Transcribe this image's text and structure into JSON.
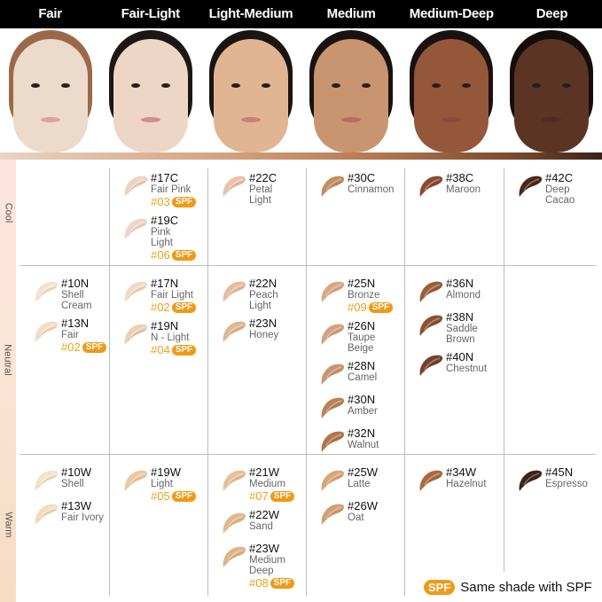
{
  "columns": [
    {
      "label": "Fair",
      "skin": "#ecdacb",
      "hair": "#9a6a48",
      "lip": "#d9a3a0"
    },
    {
      "label": "Fair-Light",
      "skin": "#edd6c6",
      "hair": "#1c1614",
      "lip": "#cf8f8a"
    },
    {
      "label": "Light-Medium",
      "skin": "#e2b592",
      "hair": "#1a1412",
      "lip": "#c98274"
    },
    {
      "label": "Medium",
      "skin": "#c99570",
      "hair": "#1a1210",
      "lip": "#b2705e"
    },
    {
      "label": "Medium-Deep",
      "skin": "#94573a",
      "hair": "#1a1110",
      "lip": "#8a4a3b"
    },
    {
      "label": "Deep",
      "skin": "#5c3424",
      "hair": "#150d0b",
      "lip": "#4e2a22"
    }
  ],
  "rows": [
    {
      "label": "Cool",
      "cells": [
        [],
        [
          {
            "code": "#17C",
            "name": "Fair Pink",
            "spf": "#03",
            "color": "#efd1c2"
          },
          {
            "code": "#19C",
            "name": "Pink Light",
            "spf": "#06",
            "color": "#f0d5c8"
          }
        ],
        [
          {
            "code": "#22C",
            "name": "Petal Light",
            "color": "#e9c2aa"
          }
        ],
        [
          {
            "code": "#30C",
            "name": "Cinnamon",
            "color": "#c58d62"
          }
        ],
        [
          {
            "code": "#38C",
            "name": "Maroon",
            "color": "#8a4a30"
          }
        ],
        [
          {
            "code": "#42C",
            "name": "Deep Cacao",
            "color": "#4b261a"
          }
        ]
      ]
    },
    {
      "label": "Neutral",
      "cells": [
        [
          {
            "code": "#10N",
            "name": "Shell Cream",
            "color": "#f3e3cf"
          },
          {
            "code": "#13N",
            "name": "Fair",
            "spf": "#02",
            "color": "#f2dcc8"
          }
        ],
        [
          {
            "code": "#17N",
            "name": "Fair Light",
            "spf": "#02",
            "color": "#f1dbc3"
          },
          {
            "code": "#19N",
            "name": "N - Light",
            "spf": "#04",
            "color": "#ecd0b4"
          }
        ],
        [
          {
            "code": "#22N",
            "name": "Peach Light",
            "color": "#e6bda0"
          },
          {
            "code": "#23N",
            "name": "Honey",
            "color": "#e1b593"
          }
        ],
        [
          {
            "code": "#25N",
            "name": "Bronze",
            "spf": "#09",
            "color": "#d9a883"
          },
          {
            "code": "#26N",
            "name": "Taupe Beige",
            "color": "#d3a27c"
          },
          {
            "code": "#28N",
            "name": "Camel",
            "color": "#c99470"
          },
          {
            "code": "#30N",
            "name": "Amber",
            "color": "#bb8258"
          },
          {
            "code": "#32N",
            "name": "Walnut",
            "color": "#b07748"
          }
        ],
        [
          {
            "code": "#36N",
            "name": "Almond",
            "color": "#9b5e3b"
          },
          {
            "code": "#38N",
            "name": "Saddle Brown",
            "color": "#8c5131"
          },
          {
            "code": "#40N",
            "name": "Chestnut",
            "color": "#74412a"
          }
        ],
        []
      ]
    },
    {
      "label": "Warm",
      "cells": [
        [
          {
            "code": "#10W",
            "name": "Shell",
            "color": "#f4e2c9"
          },
          {
            "code": "#13W",
            "name": "Fair Ivory",
            "color": "#f2dcc0"
          }
        ],
        [
          {
            "code": "#19W",
            "name": "Light",
            "spf": "#05",
            "color": "#ecc9a4"
          }
        ],
        [
          {
            "code": "#21W",
            "name": "Medium",
            "spf": "#07",
            "color": "#e8c095"
          },
          {
            "code": "#22W",
            "name": "Sand",
            "color": "#e3b88d"
          },
          {
            "code": "#23W",
            "name": "Medium Deep",
            "spf": "#08",
            "color": "#e0b387"
          }
        ],
        [
          {
            "code": "#25W",
            "name": "Latte",
            "color": "#d8a678"
          },
          {
            "code": "#26W",
            "name": "Oat",
            "color": "#d29f72"
          }
        ],
        [
          {
            "code": "#34W",
            "name": "Hazelnut",
            "color": "#a86a3f"
          }
        ],
        [
          {
            "code": "#45N",
            "name": "Espresso",
            "color": "#3d221b"
          }
        ]
      ]
    }
  ],
  "spf_badge": "SPF",
  "legend": {
    "badge": "SPF",
    "text": "Same shade with SPF"
  },
  "accent_color": "#ef9a17"
}
